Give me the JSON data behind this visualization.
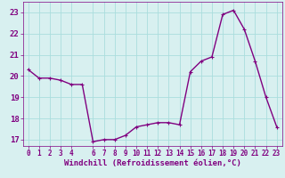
{
  "hours": [
    0,
    1,
    2,
    3,
    4,
    5,
    6,
    7,
    8,
    9,
    10,
    11,
    12,
    13,
    14,
    15,
    16,
    17,
    18,
    19,
    20,
    21,
    22,
    23
  ],
  "values": [
    20.3,
    19.9,
    19.9,
    19.8,
    19.6,
    19.6,
    16.9,
    17.0,
    17.0,
    17.2,
    17.6,
    17.7,
    17.8,
    17.8,
    17.7,
    20.2,
    20.7,
    20.9,
    22.9,
    23.1,
    22.2,
    20.7,
    19.0,
    17.6
  ],
  "line_color": "#800080",
  "marker": "+",
  "marker_size": 3,
  "bg_color": "#d8f0f0",
  "grid_color": "#aadddd",
  "xlabel": "Windchill (Refroidissement éolien,°C)",
  "xlabel_color": "#800080",
  "ylim": [
    16.7,
    23.5
  ],
  "xlim": [
    -0.5,
    23.5
  ],
  "yticks": [
    17,
    18,
    19,
    20,
    21,
    22,
    23
  ],
  "xticks": [
    0,
    1,
    2,
    3,
    4,
    6,
    7,
    8,
    9,
    10,
    11,
    12,
    13,
    14,
    15,
    16,
    17,
    18,
    19,
    20,
    21,
    22,
    23
  ],
  "tick_color": "#800080",
  "tick_fontsize": 5.5,
  "xlabel_fontsize": 6.5,
  "line_width": 1.0
}
